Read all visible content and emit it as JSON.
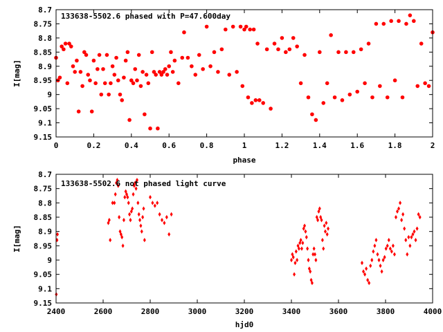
{
  "colors": {
    "point": "#ff0000",
    "axis": "#000000",
    "background": "#ffffff"
  },
  "chart_data": [
    {
      "type": "scatter",
      "title": "133638-5502.6 phased with P=47.600day",
      "xlabel": "phase",
      "ylabel": "I[mag]",
      "xlim": [
        0,
        2
      ],
      "ylim": [
        9.15,
        8.7
      ],
      "y_inverted": true,
      "x_ticks": [
        "0",
        "0.2",
        "0.4",
        "0.6",
        "0.8",
        "1",
        "1.2",
        "1.4",
        "1.6",
        "1.8",
        "2"
      ],
      "y_ticks": [
        "8.7",
        "8.75",
        "8.8",
        "8.85",
        "8.9",
        "8.95",
        "9",
        "9.05",
        "9.1",
        "9.15"
      ],
      "grid": false,
      "marker": "small filled red circle",
      "x": [
        0.0,
        0.01,
        0.02,
        0.03,
        0.04,
        0.05,
        0.06,
        0.07,
        0.08,
        0.09,
        0.1,
        0.11,
        0.12,
        0.13,
        0.14,
        0.15,
        0.16,
        0.17,
        0.18,
        0.19,
        0.2,
        0.21,
        0.22,
        0.23,
        0.24,
        0.25,
        0.26,
        0.27,
        0.28,
        0.29,
        0.3,
        0.31,
        0.32,
        0.33,
        0.34,
        0.35,
        0.36,
        0.37,
        0.38,
        0.39,
        0.4,
        0.41,
        0.42,
        0.43,
        0.44,
        0.45,
        0.46,
        0.47,
        0.48,
        0.49,
        0.5,
        0.51,
        0.52,
        0.53,
        0.54,
        0.55,
        0.56,
        0.57,
        0.58,
        0.59,
        0.6,
        0.61,
        0.62,
        0.63,
        0.65,
        0.67,
        0.68,
        0.7,
        0.72,
        0.74,
        0.76,
        0.78,
        0.8,
        0.82,
        0.84,
        0.86,
        0.88,
        0.9,
        0.92,
        0.94,
        0.96,
        0.98,
        0.99,
        1.0,
        1.01,
        1.02,
        1.03,
        1.04,
        1.05,
        1.06,
        1.07,
        1.08,
        1.1,
        1.12,
        1.14,
        1.16,
        1.18,
        1.2,
        1.22,
        1.24,
        1.26,
        1.28,
        1.3,
        1.32,
        1.34,
        1.36,
        1.38,
        1.4,
        1.42,
        1.44,
        1.46,
        1.48,
        1.5,
        1.52,
        1.54,
        1.56,
        1.58,
        1.6,
        1.62,
        1.64,
        1.66,
        1.68,
        1.7,
        1.72,
        1.74,
        1.76,
        1.78,
        1.8,
        1.82,
        1.84,
        1.86,
        1.88,
        1.9,
        1.92,
        1.94,
        1.96,
        1.98,
        2.0
      ],
      "y": [
        8.87,
        8.95,
        8.94,
        8.83,
        8.84,
        8.82,
        8.96,
        8.82,
        8.83,
        8.9,
        8.92,
        8.88,
        9.06,
        8.92,
        8.97,
        8.85,
        8.86,
        8.93,
        8.95,
        9.06,
        8.88,
        8.96,
        8.91,
        8.86,
        9.0,
        8.91,
        8.96,
        8.86,
        9.0,
        8.96,
        8.9,
        8.93,
        8.87,
        8.95,
        9.0,
        9.02,
        8.94,
        8.88,
        8.85,
        9.09,
        8.95,
        8.96,
        8.91,
        8.95,
        8.86,
        8.97,
        8.92,
        9.07,
        8.93,
        8.96,
        9.12,
        8.85,
        8.92,
        8.93,
        9.12,
        8.92,
        8.93,
        8.92,
        8.91,
        8.93,
        8.9,
        8.85,
        8.92,
        8.88,
        8.96,
        8.87,
        8.78,
        8.87,
        8.9,
        8.93,
        8.86,
        8.91,
        8.76,
        8.9,
        8.85,
        8.92,
        8.84,
        8.77,
        8.93,
        8.76,
        8.92,
        8.76,
        8.97,
        8.77,
        8.76,
        9.01,
        8.77,
        9.03,
        8.77,
        9.02,
        8.82,
        9.02,
        9.03,
        8.84,
        9.05,
        8.82,
        8.84,
        8.8,
        8.85,
        8.84,
        8.8,
        8.83,
        8.96,
        8.86,
        9.01,
        9.07,
        9.09,
        8.85,
        9.03,
        8.96,
        8.79,
        9.01,
        8.85,
        9.02,
        8.85,
        9.0,
        8.85,
        8.99,
        8.84,
        8.96,
        8.82,
        9.01,
        8.75,
        8.97,
        8.75,
        9.01,
        8.74,
        8.95,
        8.74,
        9.01,
        8.75,
        8.72,
        8.74,
        8.97,
        8.82,
        8.96,
        8.97,
        8.78
      ]
    },
    {
      "type": "scatter",
      "title": "133638-5502.6 not phased light curve",
      "xlabel": "hjd0",
      "ylabel": "I[mag]",
      "xlim": [
        2400,
        4000
      ],
      "ylim": [
        9.15,
        8.7
      ],
      "y_inverted": true,
      "x_ticks": [
        "2400",
        "2600",
        "2800",
        "3000",
        "3200",
        "3400",
        "3600",
        "3800",
        "4000"
      ],
      "y_ticks": [
        "8.7",
        "8.75",
        "8.8",
        "8.85",
        "8.9",
        "8.95",
        "9",
        "9.05",
        "9.1",
        "9.15"
      ],
      "grid": false,
      "marker": "small filled red diamond",
      "x": [
        2401,
        2404,
        2406,
        2622,
        2626,
        2630,
        2640,
        2648,
        2652,
        2656,
        2660,
        2664,
        2668,
        2672,
        2676,
        2680,
        2684,
        2688,
        2692,
        2696,
        2700,
        2704,
        2708,
        2712,
        2716,
        2720,
        2724,
        2728,
        2732,
        2736,
        2740,
        2744,
        2748,
        2752,
        2756,
        2760,
        2764,
        2768,
        2772,
        2776,
        2800,
        2810,
        2820,
        2830,
        2840,
        2850,
        2860,
        2870,
        2880,
        2890,
        3400,
        3404,
        3408,
        3412,
        3416,
        3420,
        3424,
        3428,
        3432,
        3436,
        3440,
        3444,
        3448,
        3452,
        3456,
        3460,
        3464,
        3468,
        3472,
        3476,
        3480,
        3484,
        3488,
        3492,
        3496,
        3500,
        3504,
        3508,
        3512,
        3516,
        3520,
        3524,
        3528,
        3532,
        3536,
        3540,
        3544,
        3548,
        3552,
        3556,
        3700,
        3706,
        3712,
        3718,
        3724,
        3730,
        3736,
        3742,
        3748,
        3754,
        3760,
        3766,
        3772,
        3778,
        3784,
        3790,
        3796,
        3802,
        3808,
        3814,
        3820,
        3826,
        3832,
        3838,
        3844,
        3850,
        3856,
        3862,
        3868,
        3874,
        3880,
        3886,
        3892,
        3898,
        3904,
        3910,
        3916,
        3922,
        3928,
        3934,
        3940,
        3946
      ],
      "y": [
        9.12,
        8.93,
        8.91,
        8.87,
        8.86,
        8.93,
        8.8,
        8.8,
        8.77,
        8.73,
        8.72,
        8.74,
        8.85,
        8.9,
        8.91,
        8.92,
        8.95,
        8.86,
        8.78,
        8.76,
        8.77,
        8.78,
        8.8,
        8.84,
        8.86,
        8.83,
        8.82,
        8.77,
        8.74,
        8.73,
        8.75,
        8.72,
        8.8,
        8.84,
        8.86,
        8.88,
        8.9,
        8.85,
        8.82,
        8.93,
        8.78,
        8.8,
        8.81,
        8.8,
        8.84,
        8.86,
        8.87,
        8.85,
        8.91,
        8.84,
        9.0,
        8.98,
        8.99,
        9.05,
        9.01,
        8.97,
        9.0,
        8.95,
        8.96,
        8.94,
        8.93,
        8.96,
        8.94,
        8.89,
        8.88,
        8.9,
        8.92,
        8.96,
        9.0,
        9.03,
        9.04,
        9.07,
        9.08,
        8.98,
        8.96,
        8.98,
        9.0,
        8.85,
        8.86,
        8.83,
        8.82,
        8.85,
        8.86,
        8.93,
        8.96,
        8.88,
        8.9,
        8.87,
        8.91,
        8.89,
        9.01,
        9.04,
        9.05,
        9.03,
        9.07,
        9.08,
        9.02,
        9.0,
        8.97,
        8.95,
        8.93,
        8.98,
        9.0,
        9.02,
        9.04,
        9.0,
        8.99,
        8.96,
        8.95,
        8.93,
        8.96,
        8.97,
        8.95,
        8.98,
        8.85,
        8.83,
        8.82,
        8.8,
        8.86,
        8.84,
        8.89,
        8.93,
        8.98,
        8.92,
        8.95,
        8.92,
        8.91,
        8.9,
        8.93,
        8.89,
        8.84,
        8.85
      ]
    }
  ]
}
